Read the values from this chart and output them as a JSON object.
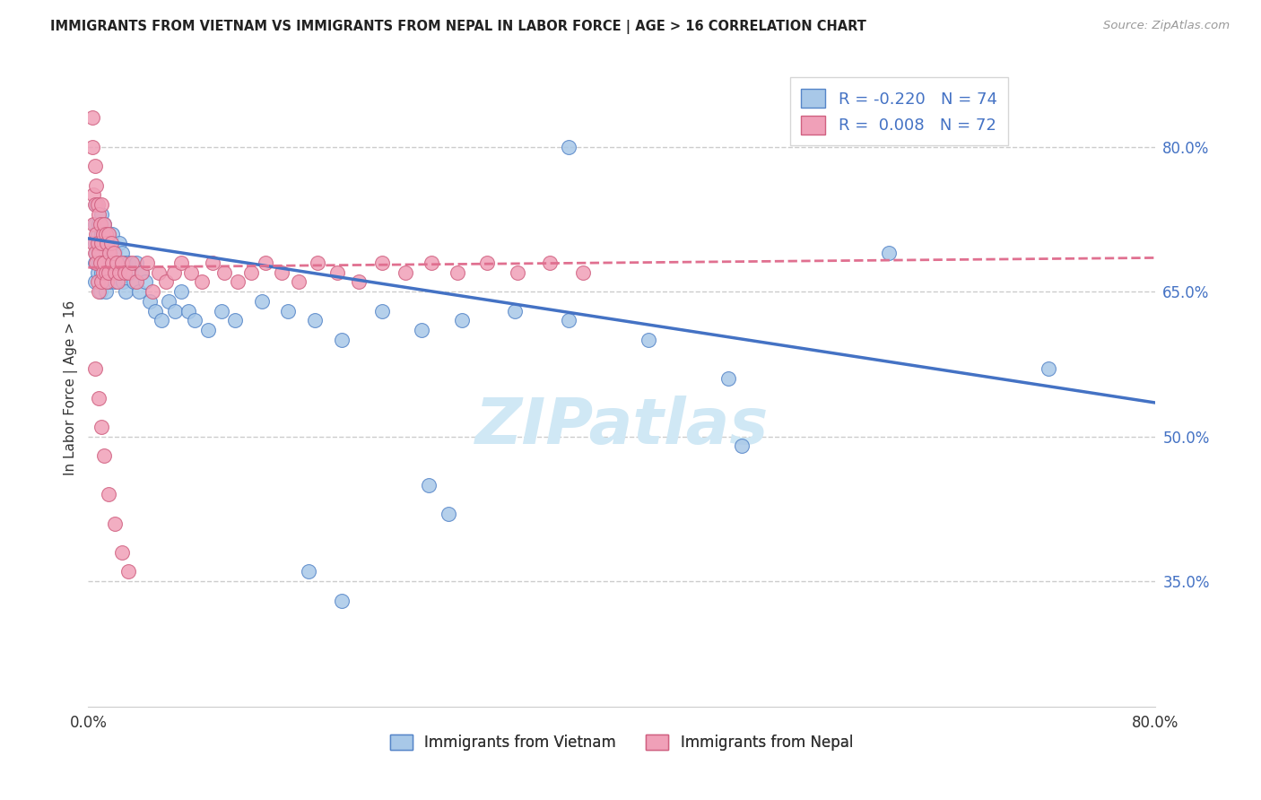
{
  "title": "IMMIGRANTS FROM VIETNAM VS IMMIGRANTS FROM NEPAL IN LABOR FORCE | AGE > 16 CORRELATION CHART",
  "source": "Source: ZipAtlas.com",
  "ylabel": "In Labor Force | Age > 16",
  "xlim": [
    0.0,
    0.8
  ],
  "ylim": [
    0.22,
    0.88
  ],
  "ytick_positions_right": [
    0.8,
    0.65,
    0.5,
    0.35
  ],
  "vietnam_color": "#a8c8e8",
  "nepal_color": "#f0a0b8",
  "vietnam_edge_color": "#5585c8",
  "nepal_edge_color": "#d06080",
  "vietnam_line_color": "#4472c4",
  "nepal_line_color": "#e07090",
  "R_vietnam": -0.22,
  "N_vietnam": 74,
  "R_nepal": 0.008,
  "N_nepal": 72,
  "background_color": "#ffffff",
  "grid_color": "#cccccc",
  "title_color": "#222222",
  "source_color": "#999999",
  "axis_label_color": "#333333",
  "right_tick_color": "#4472c4",
  "bottom_tick_color": "#333333",
  "watermark_color": "#d0e8f5",
  "vietnam_scatter_x": [
    0.005,
    0.005,
    0.005,
    0.005,
    0.006,
    0.006,
    0.007,
    0.007,
    0.008,
    0.008,
    0.009,
    0.009,
    0.01,
    0.01,
    0.01,
    0.01,
    0.01,
    0.011,
    0.011,
    0.012,
    0.012,
    0.013,
    0.013,
    0.014,
    0.014,
    0.015,
    0.015,
    0.016,
    0.016,
    0.017,
    0.017,
    0.018,
    0.018,
    0.019,
    0.02,
    0.02,
    0.021,
    0.022,
    0.023,
    0.025,
    0.026,
    0.027,
    0.028,
    0.03,
    0.032,
    0.034,
    0.036,
    0.038,
    0.04,
    0.043,
    0.046,
    0.05,
    0.055,
    0.06,
    0.065,
    0.07,
    0.075,
    0.08,
    0.09,
    0.1,
    0.11,
    0.13,
    0.15,
    0.17,
    0.19,
    0.22,
    0.25,
    0.28,
    0.32,
    0.36,
    0.42,
    0.49,
    0.6,
    0.72
  ],
  "vietnam_scatter_y": [
    0.72,
    0.7,
    0.68,
    0.66,
    0.74,
    0.69,
    0.71,
    0.67,
    0.72,
    0.68,
    0.7,
    0.65,
    0.71,
    0.69,
    0.67,
    0.73,
    0.68,
    0.7,
    0.66,
    0.72,
    0.68,
    0.69,
    0.65,
    0.7,
    0.67,
    0.71,
    0.68,
    0.69,
    0.66,
    0.7,
    0.67,
    0.71,
    0.68,
    0.67,
    0.69,
    0.66,
    0.68,
    0.67,
    0.7,
    0.69,
    0.66,
    0.68,
    0.65,
    0.68,
    0.67,
    0.66,
    0.68,
    0.65,
    0.67,
    0.66,
    0.64,
    0.63,
    0.62,
    0.64,
    0.63,
    0.65,
    0.63,
    0.62,
    0.61,
    0.63,
    0.62,
    0.64,
    0.63,
    0.62,
    0.6,
    0.63,
    0.61,
    0.62,
    0.63,
    0.62,
    0.6,
    0.49,
    0.69,
    0.57
  ],
  "vietnam_scatter_x_extra": [
    0.165,
    0.19,
    0.255,
    0.27,
    0.36,
    0.48
  ],
  "vietnam_scatter_y_extra": [
    0.36,
    0.33,
    0.45,
    0.42,
    0.8,
    0.56
  ],
  "nepal_scatter_x": [
    0.003,
    0.003,
    0.004,
    0.004,
    0.004,
    0.005,
    0.005,
    0.005,
    0.006,
    0.006,
    0.006,
    0.007,
    0.007,
    0.007,
    0.008,
    0.008,
    0.008,
    0.009,
    0.009,
    0.01,
    0.01,
    0.01,
    0.011,
    0.011,
    0.012,
    0.012,
    0.013,
    0.013,
    0.014,
    0.014,
    0.015,
    0.015,
    0.016,
    0.017,
    0.018,
    0.019,
    0.02,
    0.021,
    0.022,
    0.023,
    0.025,
    0.027,
    0.03,
    0.033,
    0.036,
    0.04,
    0.044,
    0.048,
    0.053,
    0.058,
    0.064,
    0.07,
    0.077,
    0.085,
    0.093,
    0.102,
    0.112,
    0.122,
    0.133,
    0.145,
    0.158,
    0.172,
    0.187,
    0.203,
    0.22,
    0.238,
    0.257,
    0.277,
    0.299,
    0.322,
    0.346,
    0.371
  ],
  "nepal_scatter_y": [
    0.83,
    0.8,
    0.75,
    0.72,
    0.7,
    0.78,
    0.74,
    0.69,
    0.76,
    0.71,
    0.68,
    0.74,
    0.7,
    0.66,
    0.73,
    0.69,
    0.65,
    0.72,
    0.68,
    0.74,
    0.7,
    0.66,
    0.71,
    0.67,
    0.72,
    0.68,
    0.71,
    0.67,
    0.7,
    0.66,
    0.71,
    0.67,
    0.69,
    0.7,
    0.68,
    0.69,
    0.67,
    0.68,
    0.66,
    0.67,
    0.68,
    0.67,
    0.67,
    0.68,
    0.66,
    0.67,
    0.68,
    0.65,
    0.67,
    0.66,
    0.67,
    0.68,
    0.67,
    0.66,
    0.68,
    0.67,
    0.66,
    0.67,
    0.68,
    0.67,
    0.66,
    0.68,
    0.67,
    0.66,
    0.68,
    0.67,
    0.68,
    0.67,
    0.68,
    0.67,
    0.68,
    0.67
  ],
  "nepal_scatter_x_extra": [
    0.005,
    0.008,
    0.01,
    0.012,
    0.015,
    0.02,
    0.025,
    0.03
  ],
  "nepal_scatter_y_extra": [
    0.57,
    0.54,
    0.51,
    0.48,
    0.44,
    0.41,
    0.38,
    0.36
  ],
  "vietnam_line_x0": 0.0,
  "vietnam_line_y0": 0.705,
  "vietnam_line_x1": 0.8,
  "vietnam_line_y1": 0.535,
  "nepal_line_x0": 0.0,
  "nepal_line_y0": 0.675,
  "nepal_line_x1": 0.8,
  "nepal_line_y1": 0.685
}
